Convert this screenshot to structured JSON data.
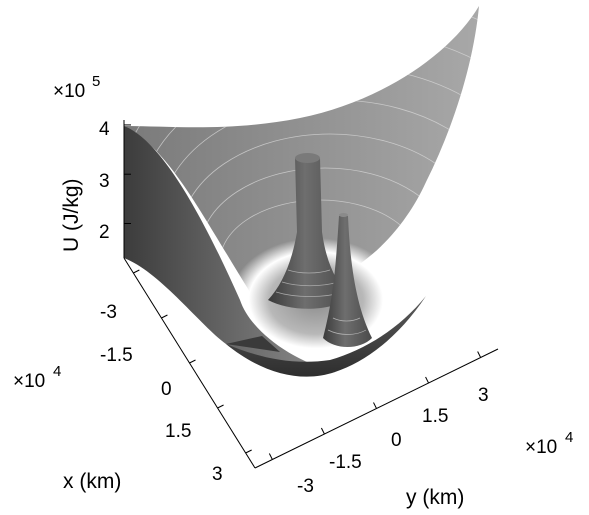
{
  "chart_data": {
    "type": "surface",
    "zlabel": "U (J/kg)",
    "xlabel": "x (km)",
    "ylabel": "y (km)",
    "z_exponent_label": "×10",
    "z_exponent": "5",
    "x_exponent_label": "×10",
    "x_exponent": "4",
    "y_exponent_label": "×10",
    "y_exponent": "4",
    "z_ticks": [
      "2",
      "3",
      "4"
    ],
    "x_ticks": [
      "-3",
      "-1.5",
      "0",
      "1.5",
      "3"
    ],
    "y_ticks": [
      "-3",
      "-1.5",
      "0",
      "1.5",
      "3"
    ],
    "zlim": [
      1.3,
      4.1
    ],
    "xlim": [
      -3.5,
      3.5
    ],
    "ylim": [
      -3.5,
      3.5
    ],
    "colormap": "grayscale",
    "grid": false,
    "features": [
      {
        "name": "central column",
        "x": 0,
        "y": 0,
        "z_top": 3.4
      },
      {
        "name": "second column",
        "x": 0.5,
        "y": 1.2,
        "z_top": 2.9
      }
    ]
  }
}
